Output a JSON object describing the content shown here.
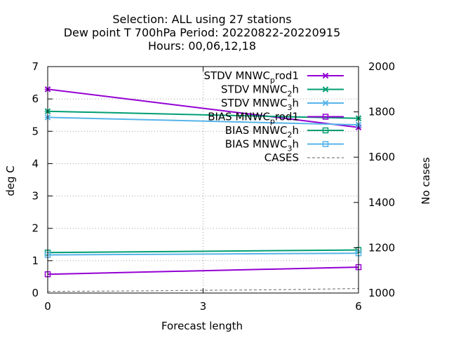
{
  "title": {
    "line1": "Selection: ALL using    27 stations",
    "line2": "Dew point T 700hPa   Period: 20220822-20220915",
    "line3": "Hours:  00,06,12,18"
  },
  "chart_data": {
    "type": "line",
    "xlabel": "Forecast length",
    "ylabel": "deg C",
    "y2label": "No cases",
    "x": [
      0,
      3,
      6
    ],
    "xlim": [
      0,
      6
    ],
    "ylim": [
      0,
      7
    ],
    "y2lim": [
      1000,
      2000
    ],
    "x_ticks": [
      0,
      3,
      6
    ],
    "y_ticks": [
      0,
      1,
      2,
      3,
      4,
      5,
      6,
      7
    ],
    "y2_ticks": [
      1000,
      1200,
      1400,
      1600,
      1800,
      2000
    ],
    "grid": true,
    "legend_position": "top-right",
    "series": [
      {
        "name": "STDV MNWC_prod1",
        "main": "STDV MNWC",
        "sub": "p",
        "tail": "rod1",
        "axis": "y",
        "marker": "x",
        "color": "#9400d3",
        "x": [
          0,
          6
        ],
        "values": [
          6.3,
          5.12
        ]
      },
      {
        "name": "STDV MNWC_2h",
        "main": "STDV MNWC",
        "sub": "2",
        "tail": "h",
        "axis": "y",
        "marker": "x",
        "color": "#009e73",
        "x": [
          0,
          6
        ],
        "values": [
          5.62,
          5.4
        ]
      },
      {
        "name": "STDV MNWC_3h",
        "main": "STDV MNWC",
        "sub": "3",
        "tail": "h",
        "axis": "y",
        "marker": "x",
        "color": "#56b4e9",
        "x": [
          0,
          6
        ],
        "values": [
          5.43,
          5.2
        ]
      },
      {
        "name": "BIAS MNWC_prod1",
        "main": "BIAS MNWC",
        "sub": "p",
        "tail": "rod1",
        "axis": "y",
        "marker": "square",
        "color": "#9400d3",
        "x": [
          0,
          6
        ],
        "values": [
          0.58,
          0.8
        ]
      },
      {
        "name": "BIAS MNWC_2h",
        "main": "BIAS MNWC",
        "sub": "2",
        "tail": "h",
        "axis": "y",
        "marker": "square",
        "color": "#009e73",
        "x": [
          0,
          6
        ],
        "values": [
          1.25,
          1.33
        ]
      },
      {
        "name": "BIAS MNWC_3h",
        "main": "BIAS MNWC",
        "sub": "3",
        "tail": "h",
        "axis": "y",
        "marker": "square",
        "color": "#56b4e9",
        "x": [
          0,
          6
        ],
        "values": [
          1.18,
          1.23
        ]
      },
      {
        "name": "CASES",
        "main": "CASES",
        "sub": "",
        "tail": "",
        "axis": "y2",
        "marker": "none",
        "dash": true,
        "color": "#808080",
        "x": [
          0,
          1,
          2,
          3,
          4,
          5,
          6
        ],
        "values": [
          1007,
          1008,
          1010,
          1012,
          1014,
          1016,
          1020
        ]
      }
    ]
  }
}
